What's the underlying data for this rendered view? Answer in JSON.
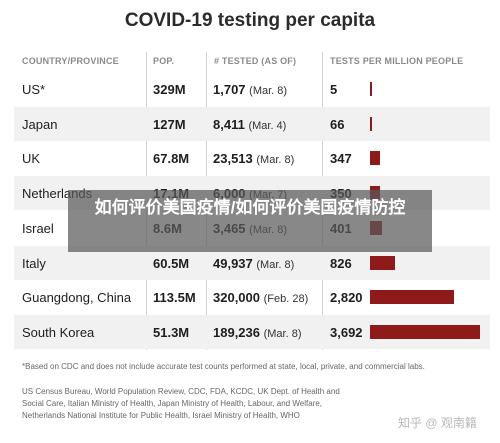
{
  "title": "COVID-19 testing per capita",
  "headers": {
    "country": "COUNTRY/PROVINCE",
    "pop": "POP.",
    "tested": "# TESTED (AS OF)",
    "per_million": "TESTS PER MILLION PEOPLE"
  },
  "chart_data": {
    "type": "table",
    "title": "COVID-19 testing per capita",
    "columns": [
      "COUNTRY/PROVINCE",
      "POP.",
      "# TESTED (AS OF)",
      "TESTS PER MILLION PEOPLE"
    ],
    "rows": [
      {
        "country": "US*",
        "pop": "329M",
        "tested": "1,707",
        "as_of": "(Mar. 8)",
        "per_million": 5
      },
      {
        "country": "Japan",
        "pop": "127M",
        "tested": "8,411",
        "as_of": "(Mar. 4)",
        "per_million": 66
      },
      {
        "country": "UK",
        "pop": "67.8M",
        "tested": "23,513",
        "as_of": "(Mar. 8)",
        "per_million": 347
      },
      {
        "country": "Netherlands",
        "pop": "17.1M",
        "tested": "6,000",
        "as_of": "(Mar. 7)",
        "per_million": 350
      },
      {
        "country": "Israel",
        "pop": "8.6M",
        "tested": "3,465",
        "as_of": "(Mar. 8)",
        "per_million": 401
      },
      {
        "country": "Italy",
        "pop": "60.5M",
        "tested": "49,937",
        "as_of": "(Mar. 8)",
        "per_million": 826
      },
      {
        "country": "Guangdong, China",
        "pop": "113.5M",
        "tested": "320,000",
        "as_of": "(Feb. 28)",
        "per_million": 2820
      },
      {
        "country": "South Korea",
        "pop": "51.3M",
        "tested": "189,236",
        "as_of": "(Mar. 8)",
        "per_million": 3692
      }
    ],
    "bar_max": 3692,
    "bar_color": "#8e1a1a"
  },
  "footnote": "*Based on CDC and does not include accurate test counts performed at state, local, private, and commercial labs.",
  "sources": "US Census Bureau, World Population Review, CDC, FDA, KCDC, UK Dept. of Health and Social Care, Italian Ministry of Health, Japan Ministry of Health, Labour, and Welfare, Netherlands National Institute for Public Health, Israel Ministry of Health, WHO",
  "overlay_text": "如何评价美国疫情/如何评价美国疫情防控",
  "watermark": "知乎 @ 观南籍"
}
